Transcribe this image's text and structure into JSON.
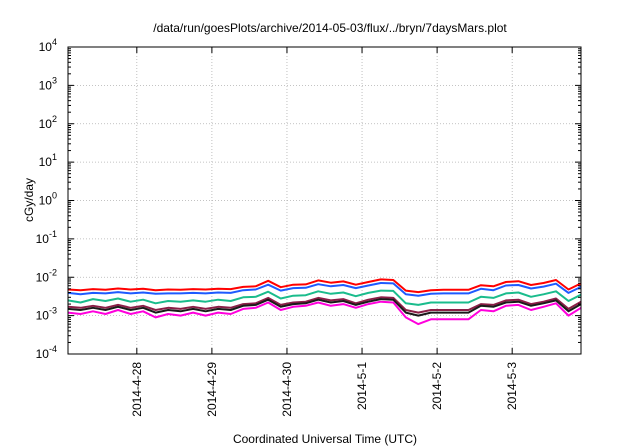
{
  "chart_data": {
    "type": "line",
    "title": "/data/run/goesPlots/archive/2014-05-03/flux/../bryn/7daysMars.plot",
    "xlabel": "Coordinated Universal Time (UTC)",
    "ylabel": "cGy/day",
    "yscale": "log",
    "ylim": [
      0.0001,
      10000
    ],
    "y_ticks": [
      {
        "value": 0.0001,
        "base": "10",
        "exp": "-4"
      },
      {
        "value": 0.001,
        "base": "10",
        "exp": "-3"
      },
      {
        "value": 0.01,
        "base": "10",
        "exp": "-2"
      },
      {
        "value": 0.1,
        "base": "10",
        "exp": "-1"
      },
      {
        "value": 1,
        "base": "10",
        "exp": "0"
      },
      {
        "value": 10,
        "base": "10",
        "exp": "1"
      },
      {
        "value": 100,
        "base": "10",
        "exp": "2"
      },
      {
        "value": 1000,
        "base": "10",
        "exp": "3"
      },
      {
        "value": 10000,
        "base": "10",
        "exp": "4"
      }
    ],
    "xlim": [
      "2014-04-27 02:00",
      "2014-05-03 22:00"
    ],
    "x_ticks": [
      "2014-4-28",
      "2014-4-29",
      "2014-4-30",
      "2014-5-1",
      "2014-5-2",
      "2014-5-3"
    ],
    "grid": true,
    "x": [
      "2014-04-27 02:00",
      "2014-04-27 06:00",
      "2014-04-27 10:00",
      "2014-04-27 14:00",
      "2014-04-27 18:00",
      "2014-04-27 22:00",
      "2014-04-28 02:00",
      "2014-04-28 06:00",
      "2014-04-28 10:00",
      "2014-04-28 14:00",
      "2014-04-28 18:00",
      "2014-04-28 22:00",
      "2014-04-29 02:00",
      "2014-04-29 06:00",
      "2014-04-29 10:00",
      "2014-04-29 14:00",
      "2014-04-29 18:00",
      "2014-04-29 22:00",
      "2014-04-30 02:00",
      "2014-04-30 06:00",
      "2014-04-30 10:00",
      "2014-04-30 14:00",
      "2014-04-30 18:00",
      "2014-04-30 22:00",
      "2014-05-01 02:00",
      "2014-05-01 06:00",
      "2014-05-01 10:00",
      "2014-05-01 14:00",
      "2014-05-01 18:00",
      "2014-05-01 22:00",
      "2014-05-02 02:00",
      "2014-05-02 06:00",
      "2014-05-02 10:00",
      "2014-05-02 14:00",
      "2014-05-02 18:00",
      "2014-05-02 22:00",
      "2014-05-03 02:00",
      "2014-05-03 06:00",
      "2014-05-03 10:00",
      "2014-05-03 14:00",
      "2014-05-03 18:00",
      "2014-05-03 22:00"
    ],
    "series": [
      {
        "color": "#ff0000",
        "values": [
          0.0048,
          0.0046,
          0.0049,
          0.0047,
          0.0051,
          0.0048,
          0.005,
          0.0046,
          0.0048,
          0.0047,
          0.0049,
          0.0048,
          0.005,
          0.0049,
          0.0056,
          0.0058,
          0.0081,
          0.0055,
          0.0064,
          0.0065,
          0.0083,
          0.0072,
          0.0078,
          0.0064,
          0.0075,
          0.0088,
          0.0085,
          0.0045,
          0.0041,
          0.0046,
          0.0047,
          0.0047,
          0.0047,
          0.0062,
          0.0058,
          0.0075,
          0.0079,
          0.0063,
          0.0071,
          0.0085,
          0.0048,
          0.0069
        ]
      },
      {
        "color": "#1e5aff",
        "values": [
          0.0039,
          0.0036,
          0.0039,
          0.0038,
          0.0041,
          0.0038,
          0.004,
          0.0037,
          0.0038,
          0.0038,
          0.0039,
          0.0038,
          0.004,
          0.0039,
          0.0046,
          0.0048,
          0.0064,
          0.0045,
          0.0052,
          0.0053,
          0.0066,
          0.0058,
          0.0063,
          0.0052,
          0.0061,
          0.0071,
          0.0069,
          0.0036,
          0.0033,
          0.0037,
          0.0038,
          0.0038,
          0.0038,
          0.005,
          0.0046,
          0.0061,
          0.0063,
          0.0051,
          0.0057,
          0.0068,
          0.0039,
          0.0056
        ]
      },
      {
        "color": "#1abc8c",
        "values": [
          0.0025,
          0.0022,
          0.0027,
          0.0024,
          0.0028,
          0.0023,
          0.0026,
          0.0021,
          0.0024,
          0.0023,
          0.0025,
          0.0023,
          0.0026,
          0.0024,
          0.003,
          0.0031,
          0.0042,
          0.0028,
          0.0033,
          0.0034,
          0.0043,
          0.0037,
          0.004,
          0.0032,
          0.0039,
          0.0045,
          0.0044,
          0.0021,
          0.0019,
          0.0022,
          0.0022,
          0.0022,
          0.0022,
          0.0031,
          0.0029,
          0.0038,
          0.004,
          0.0031,
          0.0036,
          0.0043,
          0.0024,
          0.0035
        ]
      },
      {
        "color": "#8a1e46",
        "values": [
          0.0017,
          0.0016,
          0.0018,
          0.0016,
          0.0019,
          0.0016,
          0.0018,
          0.0014,
          0.0016,
          0.0015,
          0.0017,
          0.0015,
          0.0017,
          0.0016,
          0.002,
          0.0021,
          0.0029,
          0.0019,
          0.0022,
          0.0023,
          0.0029,
          0.0025,
          0.0027,
          0.0021,
          0.0026,
          0.003,
          0.0029,
          0.0014,
          0.0012,
          0.0014,
          0.0014,
          0.0014,
          0.0014,
          0.002,
          0.0019,
          0.0025,
          0.0026,
          0.002,
          0.0023,
          0.0028,
          0.0015,
          0.0023
        ]
      },
      {
        "color": "#1a1a1a",
        "values": [
          0.0015,
          0.0014,
          0.0016,
          0.0014,
          0.0017,
          0.0014,
          0.0016,
          0.0012,
          0.0014,
          0.0013,
          0.0015,
          0.0013,
          0.0015,
          0.0014,
          0.0018,
          0.0019,
          0.0026,
          0.0017,
          0.002,
          0.0021,
          0.0026,
          0.0022,
          0.0024,
          0.0019,
          0.0023,
          0.0027,
          0.0026,
          0.0012,
          0.001,
          0.0012,
          0.0012,
          0.0012,
          0.0012,
          0.0018,
          0.0017,
          0.0022,
          0.0023,
          0.0018,
          0.0021,
          0.0025,
          0.0013,
          0.002
        ]
      },
      {
        "color": "#ff00dc",
        "values": [
          0.0012,
          0.0011,
          0.0013,
          0.0011,
          0.0014,
          0.0011,
          0.0013,
          0.0009,
          0.0011,
          0.001,
          0.0012,
          0.001,
          0.0012,
          0.0011,
          0.0015,
          0.0016,
          0.0022,
          0.0014,
          0.0017,
          0.0018,
          0.0022,
          0.0018,
          0.002,
          0.0016,
          0.002,
          0.0023,
          0.0022,
          0.0009,
          0.0006,
          0.0008,
          0.0008,
          0.0008,
          0.0008,
          0.0014,
          0.0013,
          0.0018,
          0.0019,
          0.0014,
          0.0017,
          0.0021,
          0.001,
          0.0016
        ]
      }
    ]
  }
}
